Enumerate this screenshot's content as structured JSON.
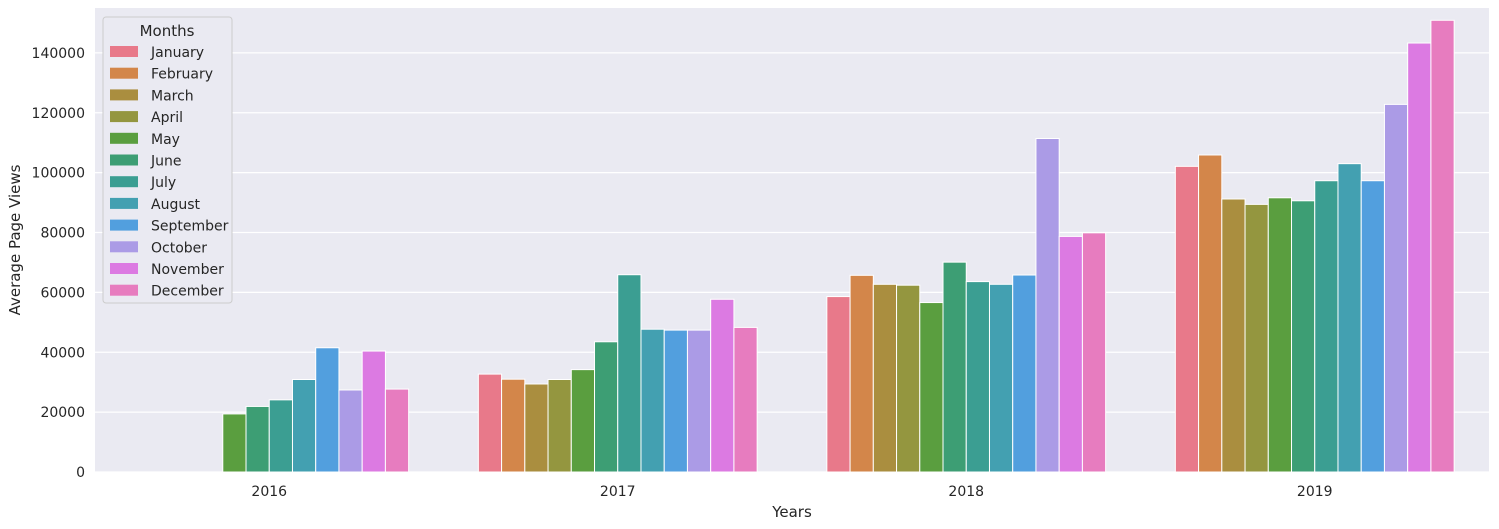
{
  "chart_data": {
    "type": "bar",
    "xlabel": "Years",
    "ylabel": "Average Page Views",
    "ylim": [
      0,
      155000
    ],
    "yticks": [
      0,
      20000,
      40000,
      60000,
      80000,
      100000,
      120000,
      140000
    ],
    "ytick_labels": [
      "0",
      "20000",
      "40000",
      "60000",
      "80000",
      "100000",
      "120000",
      "140000"
    ],
    "grid": true,
    "categories": [
      "2016",
      "2017",
      "2018",
      "2019"
    ],
    "legend": {
      "title": "Months",
      "placement": "top-left"
    },
    "series": [
      {
        "name": "January",
        "color": "#e8798a",
        "values": [
          null,
          32700,
          58600,
          102100
        ]
      },
      {
        "name": "February",
        "color": "#d3864a",
        "values": [
          null,
          31000,
          65700,
          105900
        ]
      },
      {
        "name": "March",
        "color": "#aa8e3f",
        "values": [
          null,
          29400,
          62700,
          91200
        ]
      },
      {
        "name": "April",
        "color": "#94963f",
        "values": [
          null,
          30900,
          62400,
          89400
        ]
      },
      {
        "name": "May",
        "color": "#5a9e3f",
        "values": [
          19400,
          34200,
          56600,
          91600
        ]
      },
      {
        "name": "June",
        "color": "#3d9e74",
        "values": [
          21900,
          43500,
          70100,
          90600
        ]
      },
      {
        "name": "July",
        "color": "#3b9e92",
        "values": [
          24100,
          65900,
          63600,
          97300
        ]
      },
      {
        "name": "August",
        "color": "#43a0b1",
        "values": [
          30900,
          47700,
          62700,
          103000
        ]
      },
      {
        "name": "September",
        "color": "#529fde",
        "values": [
          41500,
          47400,
          65800,
          97300
        ]
      },
      {
        "name": "October",
        "color": "#ab9be6",
        "values": [
          27400,
          47400,
          111400,
          122800
        ]
      },
      {
        "name": "November",
        "color": "#dc7ae2",
        "values": [
          40400,
          57700,
          78700,
          143300
        ]
      },
      {
        "name": "December",
        "color": "#e77cbf",
        "values": [
          27700,
          48300,
          79900,
          150900
        ]
      }
    ]
  }
}
